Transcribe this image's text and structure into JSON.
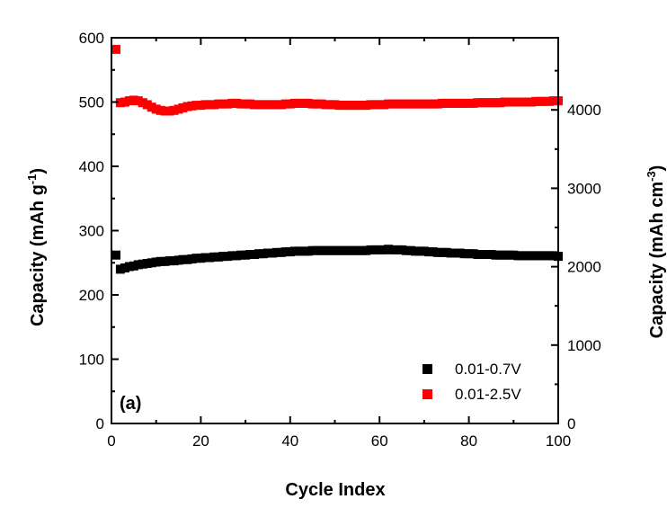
{
  "chart_data": {
    "type": "scatter",
    "panel_label": "(a)",
    "xlabel": "Cycle Index",
    "ylabel_left": {
      "main": "Capacity (mAh g",
      "sup": "-1",
      "close": ")"
    },
    "ylabel_right": {
      "main": "Capacity (mAh cm",
      "sup": "-3",
      "close": ")"
    },
    "xlim": [
      0,
      100
    ],
    "ylim_left": [
      0,
      600
    ],
    "ylim_right": [
      0,
      4000
    ],
    "right_axis_max_at_top": 4920,
    "x_ticks": [
      "0",
      "20",
      "40",
      "60",
      "80",
      "100"
    ],
    "y_left_ticks": [
      "0",
      "100",
      "200",
      "300",
      "400",
      "500",
      "600"
    ],
    "y_right_ticks": [
      "0",
      "1000",
      "2000",
      "3000",
      "4000"
    ],
    "grid": false,
    "legend_position": "bottom-right",
    "series": [
      {
        "name": "0.01-0.7V",
        "color": "#000000",
        "marker": "square",
        "x": [
          1,
          2,
          3,
          4,
          5,
          6,
          7,
          8,
          9,
          10,
          11,
          12,
          13,
          14,
          15,
          16,
          17,
          18,
          19,
          20,
          21,
          22,
          23,
          24,
          25,
          26,
          27,
          28,
          29,
          30,
          31,
          32,
          33,
          34,
          35,
          36,
          37,
          38,
          39,
          40,
          41,
          42,
          43,
          44,
          45,
          46,
          47,
          48,
          49,
          50,
          51,
          52,
          53,
          54,
          55,
          56,
          57,
          58,
          59,
          60,
          61,
          62,
          63,
          64,
          65,
          66,
          67,
          68,
          69,
          70,
          71,
          72,
          73,
          74,
          75,
          76,
          77,
          78,
          79,
          80,
          81,
          82,
          83,
          84,
          85,
          86,
          87,
          88,
          89,
          90,
          91,
          92,
          93,
          94,
          95,
          96,
          97,
          98,
          99,
          100
        ],
        "values": [
          262,
          240,
          242,
          244,
          245,
          247,
          248,
          249,
          250,
          251,
          252,
          252,
          253,
          253,
          254,
          255,
          255,
          256,
          257,
          257,
          258,
          258,
          259,
          259,
          260,
          260,
          261,
          261,
          262,
          262,
          263,
          263,
          264,
          264,
          265,
          265,
          266,
          266,
          267,
          267,
          268,
          268,
          268,
          268,
          269,
          269,
          269,
          269,
          269,
          269,
          269,
          269,
          269,
          269,
          269,
          269,
          269,
          270,
          270,
          270,
          270,
          271,
          270,
          270,
          270,
          269,
          269,
          268,
          268,
          268,
          267,
          267,
          266,
          266,
          266,
          265,
          265,
          265,
          264,
          264,
          264,
          263,
          263,
          263,
          263,
          262,
          262,
          262,
          262,
          262,
          261,
          261,
          261,
          261,
          261,
          261,
          261,
          261,
          261,
          260
        ]
      },
      {
        "name": "0.01-2.5V",
        "color": "#ff0000",
        "marker": "square",
        "x": [
          1,
          2,
          3,
          4,
          5,
          6,
          7,
          8,
          9,
          10,
          11,
          12,
          13,
          14,
          15,
          16,
          17,
          18,
          19,
          20,
          21,
          22,
          23,
          24,
          25,
          26,
          27,
          28,
          29,
          30,
          31,
          32,
          33,
          34,
          35,
          36,
          37,
          38,
          39,
          40,
          41,
          42,
          43,
          44,
          45,
          46,
          47,
          48,
          49,
          50,
          51,
          52,
          53,
          54,
          55,
          56,
          57,
          58,
          59,
          60,
          61,
          62,
          63,
          64,
          65,
          66,
          67,
          68,
          69,
          70,
          71,
          72,
          73,
          74,
          75,
          76,
          77,
          78,
          79,
          80,
          81,
          82,
          83,
          84,
          85,
          86,
          87,
          88,
          89,
          90,
          91,
          92,
          93,
          94,
          95,
          96,
          97,
          98,
          99,
          100
        ],
        "values": [
          582,
          499,
          500,
          502,
          503,
          502,
          499,
          496,
          492,
          489,
          487,
          486,
          486,
          487,
          489,
          491,
          493,
          494,
          495,
          495,
          496,
          496,
          496,
          497,
          497,
          497,
          498,
          498,
          497,
          497,
          497,
          496,
          496,
          496,
          496,
          496,
          496,
          496,
          497,
          497,
          498,
          498,
          498,
          498,
          497,
          497,
          497,
          496,
          496,
          496,
          495,
          495,
          495,
          495,
          495,
          495,
          495,
          496,
          496,
          496,
          496,
          497,
          497,
          497,
          497,
          497,
          497,
          497,
          497,
          497,
          497,
          497,
          497,
          498,
          498,
          498,
          498,
          498,
          498,
          498,
          498,
          499,
          499,
          499,
          499,
          499,
          499,
          500,
          500,
          500,
          500,
          500,
          500,
          500,
          501,
          501,
          501,
          501,
          502,
          502
        ]
      }
    ]
  }
}
